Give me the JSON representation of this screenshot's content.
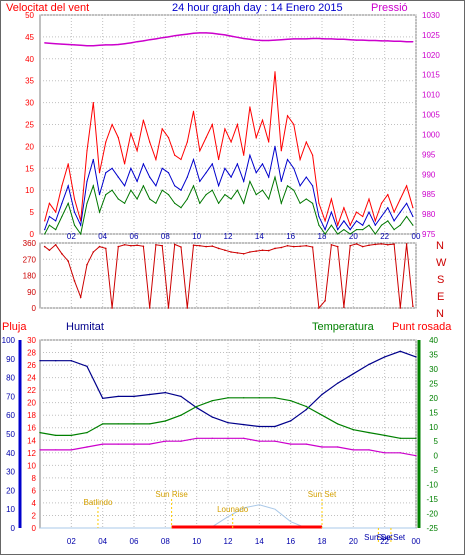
{
  "header": {
    "left": "Velocitat del vent",
    "title": "24 hour graph day : 14 Enero 2015",
    "right": "Pressió"
  },
  "lower_header": {
    "rain": "Pluja",
    "humidity": "Humitat",
    "temperature": "Temperatura",
    "dewpoint": "Punt rosada"
  },
  "colors": {
    "gust": "#ff0000",
    "wind_avg": "#0000cc",
    "wind_low": "#007700",
    "pressure": "#cc00cc",
    "direction": "#cc0000",
    "humidity": "#00008b",
    "temperature": "#008000",
    "dewpoint": "#cc00cc",
    "rain": "#ff0000",
    "solar": "#a9c8e8",
    "annotation": "#ffcc00",
    "grid": "#c0c0c0"
  },
  "chart_data": [
    {
      "type": "line",
      "name": "wind_pressure",
      "ylabel_left": "Velocitat del vent",
      "ylabel_right": "Pressió",
      "ylim_left": [
        0,
        50
      ],
      "ylim_right": [
        975,
        1030
      ],
      "y_ticks_left": [
        "0",
        "5",
        "10",
        "15",
        "20",
        "25",
        "30",
        "35",
        "40",
        "45",
        "50"
      ],
      "y_ticks_right": [
        "975",
        "980",
        "985",
        "990",
        "995",
        "1000",
        "1005",
        "1010",
        "1015",
        "1020",
        "1025",
        "1030"
      ],
      "xlim": [
        0,
        24
      ],
      "x_ticks": [
        "02",
        "04",
        "06",
        "08",
        "10",
        "12",
        "14",
        "16",
        "18",
        "20",
        "22",
        "00"
      ],
      "x": [
        0.3,
        0.6,
        1.0,
        1.4,
        1.8,
        2.2,
        2.6,
        3.0,
        3.4,
        3.8,
        4.2,
        4.6,
        5.0,
        5.4,
        5.8,
        6.2,
        6.6,
        7.0,
        7.4,
        7.8,
        8.2,
        8.6,
        9.0,
        9.4,
        9.8,
        10.2,
        10.6,
        11.0,
        11.4,
        11.8,
        12.2,
        12.6,
        13.0,
        13.4,
        13.8,
        14.2,
        14.6,
        15.0,
        15.4,
        15.8,
        16.2,
        16.6,
        17.0,
        17.4,
        17.8,
        18.2,
        18.6,
        19.0,
        19.4,
        19.8,
        20.2,
        20.6,
        21.0,
        21.4,
        21.8,
        22.2,
        22.6,
        23.0,
        23.4,
        23.8
      ],
      "series": [
        {
          "name": "gust",
          "values": [
            3,
            7,
            5,
            11,
            16,
            8,
            3,
            19,
            30,
            14,
            21,
            25,
            22,
            16,
            23,
            19,
            26,
            21,
            17,
            24,
            22,
            18,
            17,
            21,
            28,
            19,
            22,
            25,
            17,
            24,
            21,
            25,
            18,
            29,
            22,
            26,
            21,
            37,
            19,
            27,
            25,
            17,
            21,
            18,
            7,
            3,
            8,
            2,
            6,
            2,
            5,
            4,
            8,
            3,
            7,
            9,
            5,
            8,
            11,
            6
          ]
        },
        {
          "name": "wind_avg",
          "values": [
            1,
            4,
            3,
            7,
            11,
            5,
            2,
            12,
            17,
            9,
            14,
            15,
            13,
            11,
            15,
            12,
            16,
            13,
            11,
            15,
            14,
            11,
            10,
            13,
            17,
            12,
            14,
            16,
            11,
            15,
            13,
            16,
            12,
            18,
            14,
            16,
            13,
            20,
            12,
            17,
            15,
            11,
            13,
            11,
            4,
            1,
            5,
            1,
            3,
            1,
            3,
            2,
            5,
            2,
            4,
            6,
            3,
            5,
            7,
            4
          ]
        },
        {
          "name": "wind_low",
          "values": [
            0,
            2,
            1,
            4,
            7,
            2,
            0,
            7,
            11,
            5,
            9,
            10,
            8,
            7,
            10,
            8,
            11,
            8,
            7,
            10,
            9,
            7,
            6,
            8,
            11,
            7,
            9,
            10,
            7,
            9,
            8,
            10,
            7,
            12,
            9,
            10,
            8,
            13,
            7,
            11,
            10,
            7,
            8,
            7,
            2,
            0,
            2,
            0,
            1,
            0,
            1,
            1,
            2,
            0,
            2,
            3,
            1,
            2,
            4,
            2
          ]
        },
        {
          "name": "pressure",
          "axis": "right",
          "values": [
            1023.0,
            1022.9,
            1022.8,
            1022.7,
            1022.6,
            1022.5,
            1022.4,
            1022.3,
            1022.3,
            1022.4,
            1022.5,
            1022.5,
            1022.6,
            1022.8,
            1023.0,
            1023.3,
            1023.5,
            1023.8,
            1024.0,
            1024.3,
            1024.5,
            1024.8,
            1025.0,
            1025.2,
            1025.4,
            1025.5,
            1025.5,
            1025.4,
            1025.2,
            1025.0,
            1024.7,
            1024.4,
            1024.1,
            1023.9,
            1023.7,
            1023.6,
            1023.6,
            1023.7,
            1023.8,
            1023.9,
            1024.0,
            1024.0,
            1024.0,
            1024.1,
            1024.1,
            1024.0,
            1024.0,
            1023.9,
            1023.9,
            1023.8,
            1023.7,
            1023.7,
            1023.6,
            1023.6,
            1023.5,
            1023.5,
            1023.4,
            1023.4,
            1023.3,
            1023.3
          ]
        }
      ]
    },
    {
      "type": "line",
      "name": "wind_direction",
      "ylabel_right": "N W S E N",
      "ylim": [
        0,
        360
      ],
      "y_ticks": [
        "0",
        "90",
        "180",
        "270",
        "360"
      ],
      "xlim": [
        0,
        24
      ],
      "x": [
        0.3,
        0.6,
        1.0,
        1.4,
        1.8,
        2.2,
        2.6,
        3.0,
        3.4,
        3.8,
        4.2,
        4.6,
        5.0,
        5.4,
        5.8,
        6.2,
        6.6,
        7.0,
        7.4,
        7.8,
        8.2,
        8.6,
        9.0,
        9.4,
        9.8,
        10.2,
        10.6,
        11.0,
        11.4,
        11.8,
        12.2,
        12.6,
        13.0,
        13.4,
        13.8,
        14.2,
        14.6,
        15.0,
        15.4,
        15.8,
        16.2,
        16.6,
        17.0,
        17.4,
        17.8,
        18.2,
        18.6,
        19.0,
        19.4,
        19.8,
        20.2,
        20.6,
        21.0,
        21.4,
        21.8,
        22.2,
        22.6,
        23.0,
        23.4,
        23.8
      ],
      "series": [
        {
          "name": "direction",
          "values": [
            340,
            320,
            350,
            300,
            260,
            150,
            60,
            240,
            310,
            340,
            330,
            0,
            340,
            350,
            345,
            348,
            342,
            0,
            350,
            345,
            0,
            352,
            338,
            0,
            348,
            345,
            340,
            343,
            330,
            320,
            310,
            305,
            300,
            310,
            315,
            320,
            318,
            330,
            335,
            345,
            340,
            342,
            345,
            338,
            0,
            40,
            350,
            340,
            5,
            345,
            355,
            340,
            348,
            352,
            355,
            350,
            354,
            0,
            355,
            10
          ]
        }
      ]
    },
    {
      "type": "line",
      "name": "humidity_temperature",
      "ylabel_rain": "Pluja",
      "ylabel_humidity": "Humitat",
      "ylabel_temperature": "Temperatura",
      "ylabel_dewpoint": "Punt rosada",
      "ylim_humidity": [
        0,
        100
      ],
      "ylim_rain": [
        0,
        30
      ],
      "ylim_temperature": [
        -25,
        40
      ],
      "y_ticks_humidity": [
        "0",
        "10",
        "20",
        "30",
        "40",
        "50",
        "60",
        "70",
        "80",
        "90",
        "100"
      ],
      "y_ticks_rain": [
        "0",
        "2",
        "4",
        "6",
        "8",
        "10",
        "12",
        "14",
        "16",
        "18",
        "20",
        "22",
        "24",
        "26",
        "28",
        "30"
      ],
      "y_ticks_temperature": [
        "-25",
        "-20",
        "-15",
        "-10",
        "-5",
        "0",
        "5",
        "10",
        "15",
        "20",
        "25",
        "30",
        "35",
        "40"
      ],
      "xlim": [
        0,
        24
      ],
      "x_ticks": [
        "02",
        "04",
        "06",
        "08",
        "10",
        "12",
        "14",
        "16",
        "18",
        "20",
        "22",
        "00"
      ],
      "x": [
        0,
        1,
        2,
        3,
        4,
        5,
        6,
        7,
        8,
        9,
        10,
        11,
        12,
        13,
        14,
        15,
        16,
        17,
        18,
        19,
        20,
        21,
        22,
        23,
        24
      ],
      "series": [
        {
          "name": "humidity",
          "values": [
            89,
            89,
            89,
            86,
            69,
            70,
            70,
            71,
            72,
            70,
            64,
            59,
            56,
            55,
            54,
            54,
            57,
            63,
            71,
            77,
            82,
            87,
            91,
            94,
            91
          ]
        },
        {
          "name": "temperature",
          "values": [
            8,
            7,
            7,
            8,
            11,
            11,
            11,
            11,
            12,
            14,
            17,
            19,
            20,
            20,
            20,
            20,
            19,
            17,
            14,
            11,
            9,
            8,
            7,
            6,
            6
          ]
        },
        {
          "name": "dewpoint",
          "values": [
            2,
            2,
            2,
            3,
            4,
            4,
            4,
            4,
            5,
            5,
            6,
            6,
            6,
            6,
            5,
            5,
            4,
            4,
            3,
            3,
            2,
            2,
            1,
            1,
            0
          ]
        },
        {
          "name": "solar",
          "values": [
            0,
            0,
            0,
            0,
            0,
            0,
            0,
            0,
            0,
            0,
            0,
            0.2,
            1.8,
            3.2,
            3.7,
            3.0,
            1.0,
            0,
            0,
            0,
            0,
            0,
            0,
            0,
            0
          ]
        }
      ],
      "annotations": [
        {
          "label": "Batlindo",
          "x": 3.7
        },
        {
          "label": "Sun Rise",
          "x": 8.4
        },
        {
          "label": "Lounado",
          "x": 12.3
        },
        {
          "label": "Sun Set",
          "x": 18.0
        },
        {
          "label": "Sun Set",
          "x": 21.6
        },
        {
          "label": "Sun Set",
          "x": 22.4
        }
      ]
    }
  ]
}
